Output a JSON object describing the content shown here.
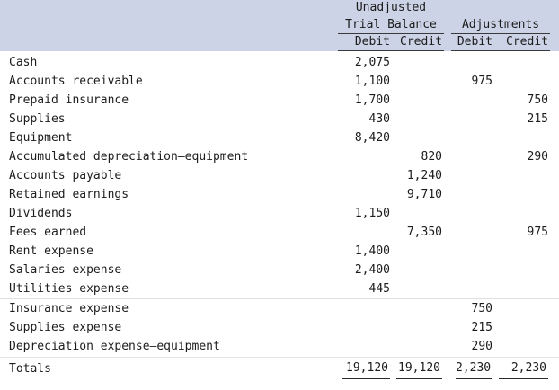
{
  "header": {
    "group_top": "Unadjusted",
    "group1": "Trial Balance",
    "group2": "Adjustments",
    "col_debit": "Debit",
    "col_credit": "Credit"
  },
  "rows": [
    {
      "name": "Cash",
      "tb_debit": "2,075",
      "tb_credit": "",
      "adj_debit": "",
      "adj_credit": ""
    },
    {
      "name": "Accounts receivable",
      "tb_debit": "1,100",
      "tb_credit": "",
      "adj_debit": "975",
      "adj_credit": ""
    },
    {
      "name": "Prepaid insurance",
      "tb_debit": "1,700",
      "tb_credit": "",
      "adj_debit": "",
      "adj_credit": "750"
    },
    {
      "name": "Supplies",
      "tb_debit": "430",
      "tb_credit": "",
      "adj_debit": "",
      "adj_credit": "215"
    },
    {
      "name": "Equipment",
      "tb_debit": "8,420",
      "tb_credit": "",
      "adj_debit": "",
      "adj_credit": ""
    },
    {
      "name": "Accumulated depreciation—equipment",
      "tb_debit": "",
      "tb_credit": "820",
      "adj_debit": "",
      "adj_credit": "290"
    },
    {
      "name": "Accounts payable",
      "tb_debit": "",
      "tb_credit": "1,240",
      "adj_debit": "",
      "adj_credit": ""
    },
    {
      "name": "Retained earnings",
      "tb_debit": "",
      "tb_credit": "9,710",
      "adj_debit": "",
      "adj_credit": ""
    },
    {
      "name": "Dividends",
      "tb_debit": "1,150",
      "tb_credit": "",
      "adj_debit": "",
      "adj_credit": ""
    },
    {
      "name": "Fees earned",
      "tb_debit": "",
      "tb_credit": "7,350",
      "adj_debit": "",
      "adj_credit": "975"
    },
    {
      "name": "Rent expense",
      "tb_debit": "1,400",
      "tb_credit": "",
      "adj_debit": "",
      "adj_credit": ""
    },
    {
      "name": "Salaries expense",
      "tb_debit": "2,400",
      "tb_credit": "",
      "adj_debit": "",
      "adj_credit": ""
    },
    {
      "name": "Utilities expense",
      "tb_debit": "445",
      "tb_credit": "",
      "adj_debit": "",
      "adj_credit": ""
    },
    {
      "name": "Insurance expense",
      "tb_debit": "",
      "tb_credit": "",
      "adj_debit": "750",
      "adj_credit": ""
    },
    {
      "name": "Supplies expense",
      "tb_debit": "",
      "tb_credit": "",
      "adj_debit": "215",
      "adj_credit": ""
    },
    {
      "name": "Depreciation expense—equipment",
      "tb_debit": "",
      "tb_credit": "",
      "adj_debit": "290",
      "adj_credit": ""
    }
  ],
  "totals": {
    "label": "Totals",
    "tb_debit": "19,120",
    "tb_credit": "19,120",
    "adj_debit": "2,230",
    "adj_credit": "2,230"
  },
  "colors": {
    "header_bg": "#ccd3e6",
    "text": "#1c1c1c",
    "rule": "#2a2a2a"
  }
}
